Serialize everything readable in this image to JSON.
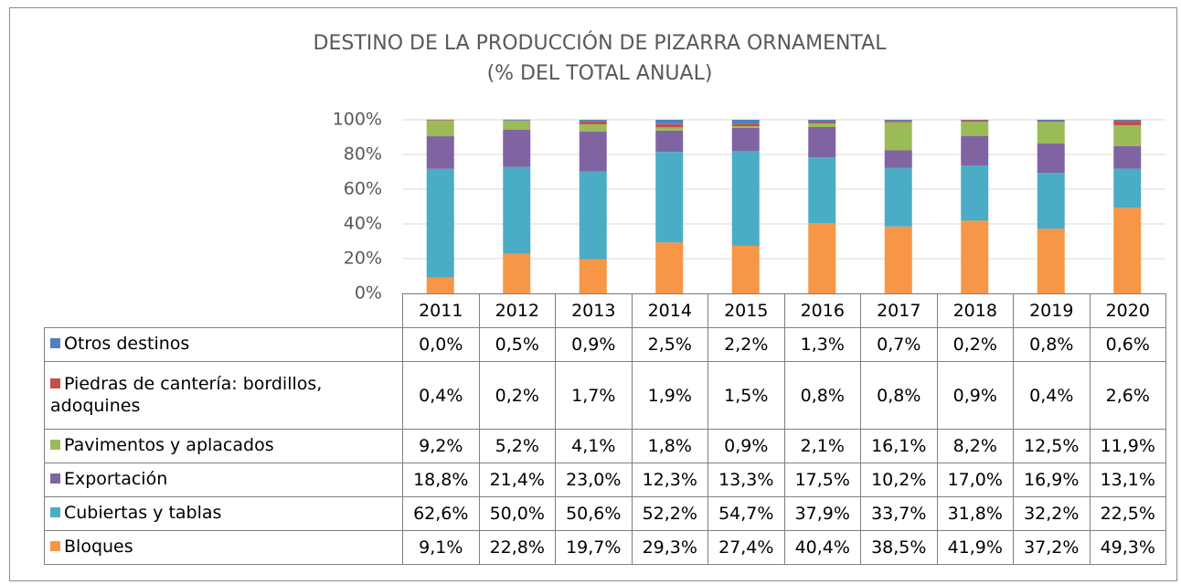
{
  "chart_data": {
    "type": "stacked_bar",
    "title": "DESTINO DE LA PRODUCCIÓN DE PIZARRA ORNAMENTAL",
    "subtitle": "(% DEL TOTAL ANUAL)",
    "categories": [
      "2011",
      "2012",
      "2013",
      "2014",
      "2015",
      "2016",
      "2017",
      "2018",
      "2019",
      "2020"
    ],
    "ylim": [
      0,
      100
    ],
    "yticks": [
      {
        "value": 0,
        "label": "0%"
      },
      {
        "value": 20,
        "label": "20%"
      },
      {
        "value": 40,
        "label": "40%"
      },
      {
        "value": 60,
        "label": "60%"
      },
      {
        "value": 80,
        "label": "80%"
      },
      {
        "value": 100,
        "label": "100%"
      }
    ],
    "grid": true,
    "series": [
      {
        "name": "Bloques",
        "color": "#f79646",
        "values": [
          9.1,
          22.8,
          19.7,
          29.3,
          27.4,
          40.4,
          38.5,
          41.9,
          37.2,
          49.3
        ],
        "value_labels": [
          "9,1%",
          "22,8%",
          "19,7%",
          "29,3%",
          "27,4%",
          "40,4%",
          "38,5%",
          "41,9%",
          "37,2%",
          "49,3%"
        ]
      },
      {
        "name": "Cubiertas y tablas",
        "color": "#4bacc6",
        "values": [
          62.6,
          50.0,
          50.6,
          52.2,
          54.7,
          37.9,
          33.7,
          31.8,
          32.2,
          22.5
        ],
        "value_labels": [
          "62,6%",
          "50,0%",
          "50,6%",
          "52,2%",
          "54,7%",
          "37,9%",
          "33,7%",
          "31,8%",
          "32,2%",
          "22,5%"
        ]
      },
      {
        "name": "Exportación",
        "color": "#8064a2",
        "values": [
          18.8,
          21.4,
          23.0,
          12.3,
          13.3,
          17.5,
          10.2,
          17.0,
          16.9,
          13.1
        ],
        "value_labels": [
          "18,8%",
          "21,4%",
          "23,0%",
          "12,3%",
          "13,3%",
          "17,5%",
          "10,2%",
          "17,0%",
          "16,9%",
          "13,1%"
        ]
      },
      {
        "name": "Pavimentos y aplacados",
        "color": "#9bbb59",
        "values": [
          9.2,
          5.2,
          4.1,
          1.8,
          0.9,
          2.1,
          16.1,
          8.2,
          12.5,
          11.9
        ],
        "value_labels": [
          "9,2%",
          "5,2%",
          "4,1%",
          "1,8%",
          "0,9%",
          "2,1%",
          "16,1%",
          "8,2%",
          "12,5%",
          "11,9%"
        ]
      },
      {
        "name": "Piedras de cantería: bordillos, adoquines",
        "color": "#c0504d",
        "values": [
          0.4,
          0.2,
          1.7,
          1.9,
          1.5,
          0.8,
          0.8,
          0.9,
          0.4,
          2.6
        ],
        "value_labels": [
          "0,4%",
          "0,2%",
          "1,7%",
          "1,9%",
          "1,5%",
          "0,8%",
          "0,8%",
          "0,9%",
          "0,4%",
          "2,6%"
        ]
      },
      {
        "name": "Otros destinos",
        "color": "#4f81bd",
        "values": [
          0.0,
          0.5,
          0.9,
          2.5,
          2.2,
          1.3,
          0.7,
          0.2,
          0.8,
          0.6
        ],
        "value_labels": [
          "0,0%",
          "0,5%",
          "0,9%",
          "2,5%",
          "2,2%",
          "1,3%",
          "0,7%",
          "0,2%",
          "0,8%",
          "0,6%"
        ]
      }
    ]
  }
}
